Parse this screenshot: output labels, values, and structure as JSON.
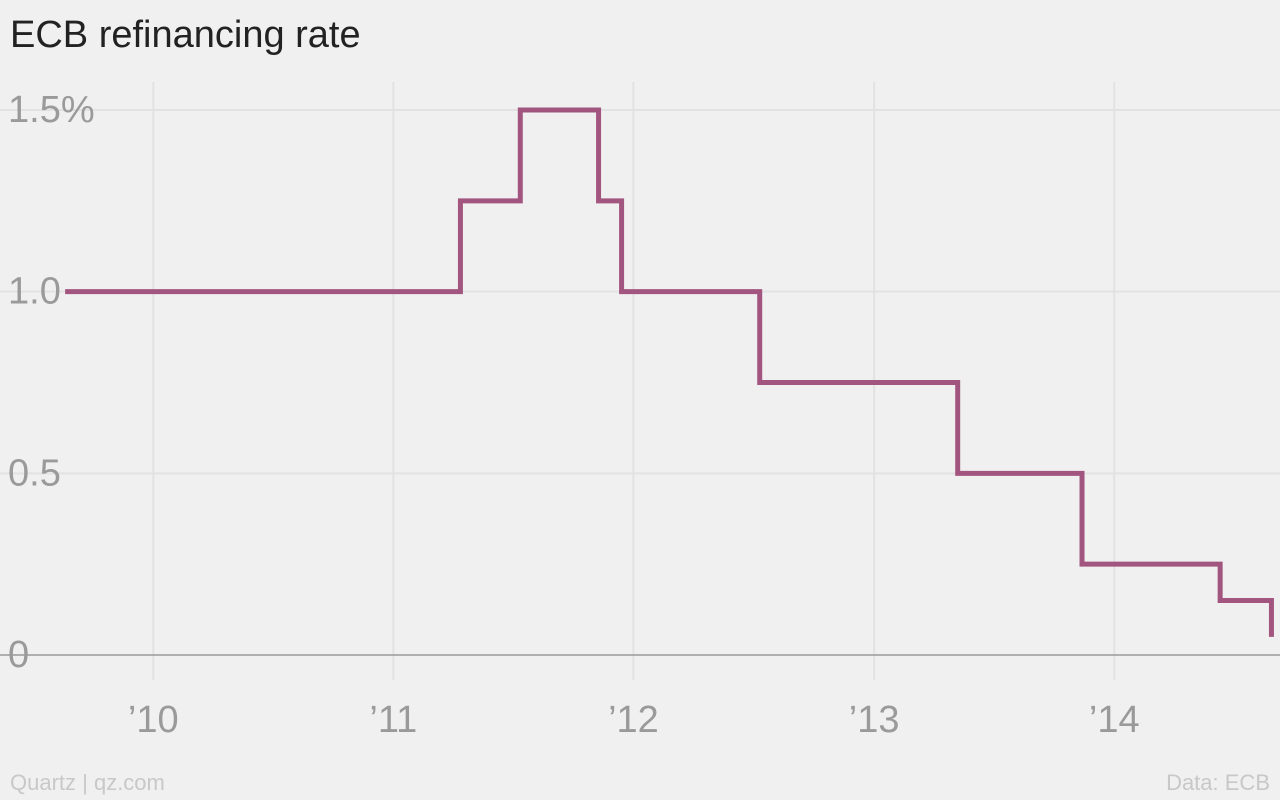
{
  "title": "ECB refinancing rate",
  "source_left": "Quartz | qz.com",
  "source_right": "Data: ECB",
  "colors": {
    "line": "#a2567f",
    "grid": "#e2e2e2",
    "axis": "#999999",
    "tick_label": "#9a9a9a",
    "background": "#f0f0f0"
  },
  "chart_data": {
    "type": "line",
    "step": true,
    "title": "ECB refinancing rate",
    "xlabel": "",
    "ylabel": "",
    "ylim": [
      0,
      1.6
    ],
    "yticks": [
      0,
      0.5,
      1.0,
      1.5
    ],
    "ytick_labels": [
      "0",
      "0.5",
      "1.0",
      "1.5%"
    ],
    "xlim": [
      "2009-05-13",
      "2014-09-10"
    ],
    "xticks": [
      "2010-01-01",
      "2011-01-01",
      "2012-01-01",
      "2013-01-01",
      "2014-01-01"
    ],
    "xtick_labels": [
      "’10",
      "’11",
      "’12",
      "’13",
      "’14"
    ],
    "grid": true,
    "series": [
      {
        "x": [
          "2009-08-20",
          "2011-04-13",
          "2011-07-13",
          "2011-11-09",
          "2011-12-14",
          "2012-07-11",
          "2013-05-08",
          "2013-11-13",
          "2014-06-11",
          "2014-08-28"
        ],
        "y": [
          1.0,
          1.25,
          1.5,
          1.25,
          1.0,
          0.75,
          0.5,
          0.25,
          0.15,
          0.05
        ]
      }
    ]
  }
}
